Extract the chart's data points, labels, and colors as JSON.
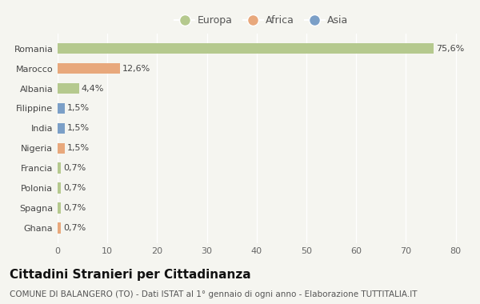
{
  "countries": [
    "Romania",
    "Marocco",
    "Albania",
    "Filippine",
    "India",
    "Nigeria",
    "Francia",
    "Polonia",
    "Spagna",
    "Ghana"
  ],
  "values": [
    75.6,
    12.6,
    4.4,
    1.5,
    1.5,
    1.5,
    0.7,
    0.7,
    0.7,
    0.7
  ],
  "labels": [
    "75,6%",
    "12,6%",
    "4,4%",
    "1,5%",
    "1,5%",
    "1,5%",
    "0,7%",
    "0,7%",
    "0,7%",
    "0,7%"
  ],
  "continents": [
    "Europa",
    "Africa",
    "Europa",
    "Asia",
    "Asia",
    "Africa",
    "Europa",
    "Europa",
    "Europa",
    "Africa"
  ],
  "colors": {
    "Europa": "#b5c98e",
    "Africa": "#e8a87c",
    "Asia": "#7b9fc7"
  },
  "title": "Cittadini Stranieri per Cittadinanza",
  "subtitle": "COMUNE DI BALANGERO (TO) - Dati ISTAT al 1° gennaio di ogni anno - Elaborazione TUTTITALIA.IT",
  "xlim": [
    0,
    82
  ],
  "xticks": [
    0,
    10,
    20,
    30,
    40,
    50,
    60,
    70,
    80
  ],
  "background_color": "#f5f5f0",
  "grid_color": "#ffffff",
  "bar_height": 0.55,
  "title_fontsize": 11,
  "subtitle_fontsize": 7.5,
  "label_fontsize": 8,
  "tick_fontsize": 8,
  "legend_fontsize": 9
}
